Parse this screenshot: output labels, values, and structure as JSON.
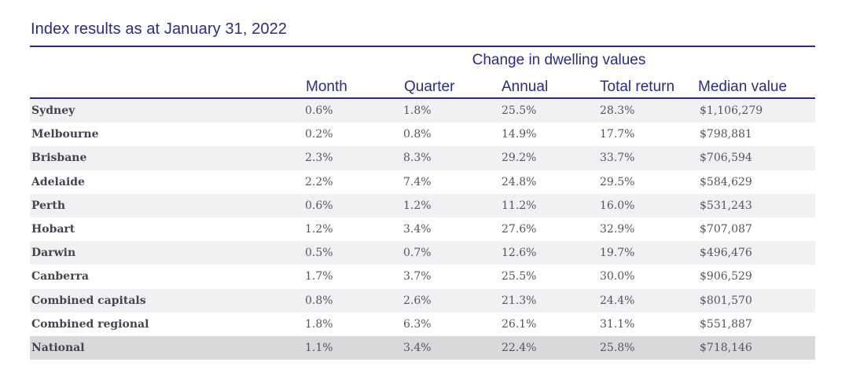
{
  "title": "Index results as at January 31, 2022",
  "table": {
    "group_header": "Change in dwelling values",
    "columns": [
      "Month",
      "Quarter",
      "Annual",
      "Total return",
      "Median value"
    ],
    "rows": [
      {
        "region": "Sydney",
        "month": "0.6%",
        "quarter": "1.8%",
        "annual": "25.5%",
        "total_return": "28.3%",
        "median_value": "$1,106,279"
      },
      {
        "region": "Melbourne",
        "month": "0.2%",
        "quarter": "0.8%",
        "annual": "14.9%",
        "total_return": "17.7%",
        "median_value": "$798,881"
      },
      {
        "region": "Brisbane",
        "month": "2.3%",
        "quarter": "8.3%",
        "annual": "29.2%",
        "total_return": "33.7%",
        "median_value": "$706,594"
      },
      {
        "region": "Adelaide",
        "month": "2.2%",
        "quarter": "7.4%",
        "annual": "24.8%",
        "total_return": "29.5%",
        "median_value": "$584,629"
      },
      {
        "region": "Perth",
        "month": "0.6%",
        "quarter": "1.2%",
        "annual": "11.2%",
        "total_return": "16.0%",
        "median_value": "$531,243"
      },
      {
        "region": "Hobart",
        "month": "1.2%",
        "quarter": "3.4%",
        "annual": "27.6%",
        "total_return": "32.9%",
        "median_value": "$707,087"
      },
      {
        "region": "Darwin",
        "month": "0.5%",
        "quarter": "0.7%",
        "annual": "12.6%",
        "total_return": "19.7%",
        "median_value": "$496,476"
      },
      {
        "region": "Canberra",
        "month": "1.7%",
        "quarter": "3.7%",
        "annual": "25.5%",
        "total_return": "30.0%",
        "median_value": "$906,529"
      },
      {
        "region": "Combined capitals",
        "month": "0.8%",
        "quarter": "2.6%",
        "annual": "21.3%",
        "total_return": "24.4%",
        "median_value": "$801,570"
      },
      {
        "region": "Combined regional",
        "month": "1.8%",
        "quarter": "6.3%",
        "annual": "26.1%",
        "total_return": "31.1%",
        "median_value": "$551,887"
      },
      {
        "region": "National",
        "month": "1.1%",
        "quarter": "3.4%",
        "annual": "22.4%",
        "total_return": "25.8%",
        "median_value": "$718,146"
      }
    ]
  },
  "colors": {
    "accent": "#2b2a8a",
    "row_alt": "#f1f1f4",
    "row_highlight": "#d9d9dc",
    "text": "#555560"
  }
}
